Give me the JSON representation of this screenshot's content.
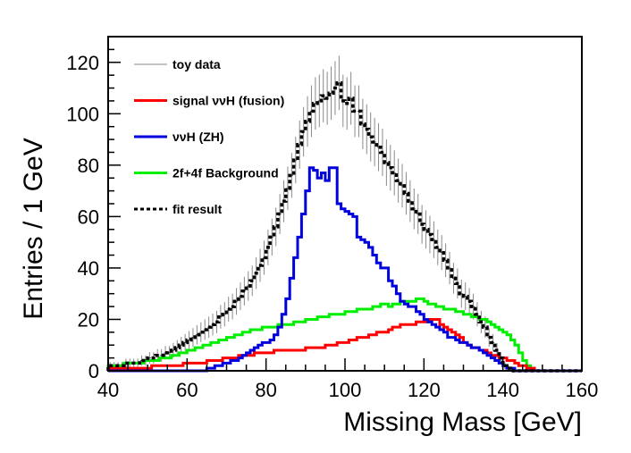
{
  "chart_data": {
    "type": "line",
    "title": "",
    "xlabel": "Missing Mass [GeV]",
    "ylabel": "Entries / 1 GeV",
    "xlim": [
      40,
      160
    ],
    "ylim": [
      0,
      130
    ],
    "x_ticks": [
      "40",
      "60",
      "80",
      "100",
      "120",
      "140",
      "160"
    ],
    "y_ticks": [
      "0",
      "20",
      "40",
      "60",
      "80",
      "100",
      "120"
    ],
    "grid": false,
    "legend_position": "top-left",
    "bin_width": 1,
    "bin_start": 40,
    "series": [
      {
        "name": "toy data",
        "style": "points-with-error-bars",
        "color": "#555555",
        "values": [
          2,
          2,
          2,
          2,
          3,
          3,
          3,
          3,
          4,
          4,
          5,
          5,
          6,
          6,
          7,
          7,
          8,
          9,
          10,
          11,
          12,
          13,
          14,
          15,
          16,
          17,
          18,
          19,
          21,
          22,
          24,
          25,
          27,
          29,
          31,
          33,
          35,
          38,
          41,
          44,
          48,
          52,
          56,
          61,
          66,
          71,
          76,
          82,
          88,
          93,
          97,
          101,
          104,
          105,
          107,
          106,
          108,
          110,
          112,
          105,
          104,
          106,
          101,
          101,
          96,
          94,
          91,
          89,
          87,
          85,
          81,
          79,
          77,
          74,
          72,
          69,
          66,
          63,
          61,
          57,
          55,
          53,
          51,
          48,
          46,
          43,
          40,
          36,
          34,
          30,
          29,
          27,
          25,
          22,
          19,
          17,
          13,
          11,
          8,
          5,
          2,
          1,
          0,
          0,
          0,
          0,
          0,
          0,
          0,
          0,
          0,
          0,
          0,
          0,
          0,
          0,
          0,
          0,
          0,
          0
        ]
      },
      {
        "name": "signal ννH (fusion)",
        "style": "step",
        "color": "#ff0000",
        "values": [
          1,
          1,
          1,
          1,
          1,
          1,
          1,
          1,
          1,
          1,
          1,
          2,
          2,
          2,
          2,
          2,
          2,
          2,
          2,
          3,
          3,
          3,
          3,
          3,
          3,
          4,
          4,
          4,
          4,
          5,
          5,
          5,
          5,
          6,
          6,
          6,
          6,
          7,
          7,
          7,
          7,
          7,
          8,
          8,
          8,
          8,
          8,
          8,
          8,
          8,
          9,
          9,
          9,
          9,
          9,
          10,
          10,
          10,
          11,
          11,
          11,
          12,
          12,
          13,
          13,
          13,
          14,
          14,
          15,
          15,
          15,
          16,
          17,
          17,
          18,
          18,
          18,
          18,
          19,
          19,
          19,
          20,
          20,
          20,
          18,
          17,
          16,
          15,
          14,
          13,
          11,
          10,
          9,
          9,
          8,
          8,
          7,
          6,
          6,
          5,
          5,
          4,
          4,
          3,
          2,
          2,
          1,
          1,
          0,
          0,
          0,
          0,
          0,
          0,
          0,
          0,
          0,
          0,
          0,
          0
        ]
      },
      {
        "name": "ννH (ZH)",
        "style": "step",
        "color": "#0000dd",
        "values": [
          0,
          0,
          0,
          0,
          0,
          0,
          0,
          0,
          0,
          0,
          0,
          0,
          0,
          0,
          0,
          0,
          0,
          0,
          0,
          0,
          0,
          0,
          0,
          0,
          0,
          1,
          1,
          2,
          2,
          3,
          3,
          4,
          4,
          5,
          6,
          7,
          8,
          9,
          10,
          11,
          11,
          12,
          14,
          17,
          22,
          28,
          36,
          44,
          52,
          61,
          70,
          79,
          78,
          75,
          77,
          74,
          79,
          79,
          65,
          63,
          62,
          61,
          60,
          52,
          51,
          50,
          48,
          45,
          42,
          40,
          40,
          35,
          33,
          30,
          27,
          26,
          25,
          25,
          23,
          22,
          20,
          19,
          18,
          17,
          16,
          15,
          13,
          13,
          12,
          11,
          11,
          10,
          9,
          9,
          8,
          7,
          6,
          5,
          4,
          3,
          2,
          1,
          1,
          0,
          0,
          0,
          0,
          0,
          0,
          0,
          0,
          0,
          0,
          0,
          0,
          0,
          0,
          0,
          0,
          0
        ]
      },
      {
        "name": "2f+4f Background",
        "style": "step",
        "color": "#00ee00",
        "values": [
          2,
          2,
          2,
          2,
          3,
          3,
          3,
          3,
          3,
          4,
          4,
          4,
          4,
          5,
          5,
          5,
          6,
          6,
          7,
          7,
          8,
          8,
          9,
          9,
          10,
          10,
          11,
          11,
          12,
          12,
          13,
          13,
          14,
          14,
          15,
          15,
          16,
          16,
          16,
          17,
          17,
          17,
          17,
          18,
          18,
          18,
          18,
          19,
          19,
          19,
          20,
          20,
          20,
          21,
          21,
          21,
          22,
          22,
          22,
          22,
          23,
          23,
          23,
          24,
          24,
          24,
          24,
          25,
          25,
          26,
          26,
          25,
          26,
          26,
          27,
          27,
          27,
          27,
          28,
          28,
          27,
          26,
          26,
          25,
          25,
          24,
          24,
          24,
          23,
          23,
          22,
          22,
          21,
          21,
          20,
          20,
          19,
          18,
          17,
          16,
          15,
          14,
          12,
          10,
          7,
          4,
          2,
          1,
          0,
          0,
          0,
          0,
          0,
          0,
          0,
          0,
          0,
          0,
          0,
          0
        ]
      },
      {
        "name": "fit result",
        "style": "dashed-step",
        "color": "#000000",
        "values": [
          2,
          2,
          2,
          2,
          3,
          3,
          3,
          3,
          4,
          4,
          5,
          5,
          6,
          6,
          7,
          7,
          8,
          9,
          10,
          11,
          12,
          13,
          14,
          15,
          16,
          17,
          18,
          19,
          21,
          22,
          24,
          25,
          27,
          29,
          31,
          33,
          35,
          38,
          41,
          44,
          48,
          52,
          56,
          61,
          66,
          71,
          76,
          82,
          88,
          93,
          97,
          101,
          104,
          105,
          107,
          106,
          108,
          110,
          112,
          105,
          104,
          106,
          101,
          101,
          96,
          94,
          91,
          89,
          87,
          85,
          81,
          79,
          77,
          74,
          72,
          69,
          66,
          63,
          61,
          57,
          55,
          53,
          51,
          48,
          46,
          43,
          40,
          36,
          34,
          30,
          29,
          27,
          25,
          22,
          19,
          17,
          13,
          11,
          8,
          5,
          2,
          1,
          0,
          0,
          0,
          0,
          0,
          0,
          0,
          0,
          0,
          0,
          0,
          0,
          0,
          0,
          0,
          0,
          0,
          0
        ]
      }
    ]
  }
}
